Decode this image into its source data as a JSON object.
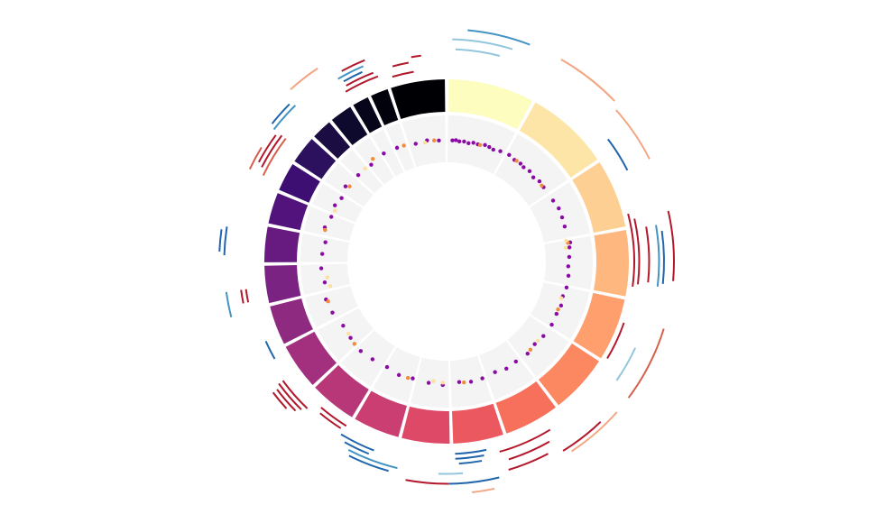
{
  "chart_data": {
    "type": "circos",
    "values": [
      249,
      242,
      198,
      190,
      181,
      171,
      159,
      145,
      138,
      134,
      135,
      133,
      114,
      107,
      102,
      90,
      83,
      80,
      59,
      64,
      47,
      51,
      156
    ],
    "colors": [
      "#fcfdbf",
      "#fde5a7",
      "#fecf92",
      "#feb77e",
      "#fe9f6d",
      "#fb8861",
      "#f6705c",
      "#ec5860",
      "#de4968",
      "#cb3e71",
      "#b73779",
      "#a3307e",
      "#8f2a81",
      "#7b2382",
      "#671b80",
      "#53137d",
      "#3e0f72",
      "#2c115f",
      "#1b0c42",
      "#0e0a2e",
      "#06051a",
      "#02020c",
      "#000004"
    ],
    "scatter": {
      "ylim": [
        0,
        1
      ],
      "series": [
        {
          "color": "#8b0aa5",
          "x": [
            20,
            35,
            50,
            70,
            90,
            110,
            130,
            160,
            180,
            200,
            230,
            260,
            290,
            320,
            340,
            370,
            400,
            430,
            460,
            520,
            560,
            600,
            640,
            700,
            720,
            760,
            800,
            840,
            880,
            920,
            960,
            1000,
            1050,
            1100,
            1150,
            1200,
            1250,
            1300,
            1350,
            1400,
            1450,
            1500,
            1560,
            1620,
            1680,
            1740,
            1800,
            1860,
            1920,
            1980,
            2040,
            2100,
            2160,
            2220,
            2280,
            2330,
            2380,
            2430,
            2480,
            2520,
            2560,
            2600,
            2660,
            2720,
            2780,
            2830,
            2900,
            2950,
            3000
          ],
          "y": [
            0.47,
            0.48,
            0.46,
            0.47,
            0.45,
            0.48,
            0.47,
            0.5,
            0.49,
            0.47,
            0.5,
            0.52,
            0.49,
            0.5,
            0.48,
            0.5,
            0.46,
            0.5,
            0.49,
            0.5,
            0.53,
            0.52,
            0.51,
            0.55,
            0.52,
            0.5,
            0.48,
            0.5,
            0.5,
            0.47,
            0.5,
            0.48,
            0.5,
            0.49,
            0.46,
            0.5,
            0.48,
            0.5,
            0.46,
            0.49,
            0.5,
            0.47,
            0.52,
            0.5,
            0.48,
            0.51,
            0.47,
            0.5,
            0.53,
            0.5,
            0.48,
            0.55,
            0.58,
            0.52,
            0.56,
            0.54,
            0.5,
            0.58,
            0.52,
            0.55,
            0.5,
            0.57,
            0.52,
            0.5,
            0.55,
            0.53,
            0.48,
            0.5,
            0.47
          ]
        },
        {
          "color": "#f08c3a",
          "x": [
            140,
            300,
            450,
            700,
            980,
            1180,
            1480,
            1700,
            1950,
            2150,
            2420,
            2610,
            2740,
            2860,
            2980
          ],
          "y": [
            0.47,
            0.5,
            0.48,
            0.5,
            0.47,
            0.48,
            0.49,
            0.5,
            0.52,
            0.55,
            0.56,
            0.5,
            0.58,
            0.52,
            0.48
          ]
        },
        {
          "color": "#fde0a0",
          "x": [
            690,
            720,
            930,
            1130,
            1560,
            1600,
            2000,
            2200,
            2240,
            2500,
            2700,
            2940
          ],
          "y": [
            0.47,
            0.44,
            0.45,
            0.46,
            0.47,
            0.45,
            0.48,
            0.42,
            0.45,
            0.5,
            0.52,
            0.46
          ]
        }
      ]
    },
    "arcs": {
      "ylim": [
        0,
        10
      ],
      "series": [
        {
          "color": "#b2182b",
          "start": [
            656,
            673,
            690,
            673,
            942,
            1177,
            1278,
            1295,
            1312,
            1539,
            1808,
            1817,
            1917,
            1926,
            1934,
            1943,
            2203,
            2203,
            2523,
            2531,
            2775,
            2784,
            2792,
            2885,
            2893,
            2944
          ],
          "end": [
            849,
            841,
            833,
            824,
            1051,
            1278,
            1413,
            1396,
            1404,
            1640,
            1892,
            1884,
            2002,
            2002,
            1993,
            1993,
            2237,
            2237,
            2607,
            2599,
            2859,
            2851,
            2843,
            2944,
            2935,
            2969
          ],
          "level": [
            0,
            1,
            3,
            8,
            0,
            7,
            2,
            4,
            6,
            7,
            1,
            2,
            3,
            4,
            5,
            6,
            3,
            4,
            4,
            5,
            2,
            3,
            6,
            1,
            3,
            4
          ]
        },
        {
          "color": "#d6604d",
          "start": [
            925,
            2506,
            2506
          ],
          "end": [
            1093,
            2607,
            2565
          ],
          "level": [
            8,
            3,
            6
          ]
        },
        {
          "color": "#f4a582",
          "start": [
            252,
            421,
            1135,
            2691,
            1446
          ],
          "end": [
            404,
            547,
            1262,
            2758,
            1497
          ],
          "level": [
            9,
            8,
            8,
            9,
            9
          ]
        },
        {
          "color": "#92c5de",
          "start": [
            8,
            17,
            992,
            1514
          ],
          "end": [
            151,
            126,
            1076,
            1564
          ],
          "level": [
            7,
            5,
            4,
            5
          ]
        },
        {
          "color": "#4393c3",
          "start": [
            42,
            690,
            1665,
            2187,
            2607,
            2775
          ],
          "end": [
            185,
            841,
            1783,
            2237,
            2674,
            2834
          ],
          "level": [
            9,
            5,
            5,
            7,
            6,
            5
          ]
        },
        {
          "color": "#2166ac",
          "start": [
            463,
            706,
            1446,
            1455,
            1463,
            1430,
            1674,
            1724,
            1733,
            2061,
            2313,
            2321,
            2615,
            2784
          ],
          "end": [
            547,
            833,
            1531,
            1531,
            1522,
            1539,
            1775,
            1808,
            1800,
            2103,
            2380,
            2372,
            2666,
            2826
          ],
          "level": [
            3,
            6,
            1,
            2,
            3,
            7,
            6,
            3,
            4,
            2,
            7,
            8,
            7,
            4
          ]
        }
      ]
    }
  }
}
